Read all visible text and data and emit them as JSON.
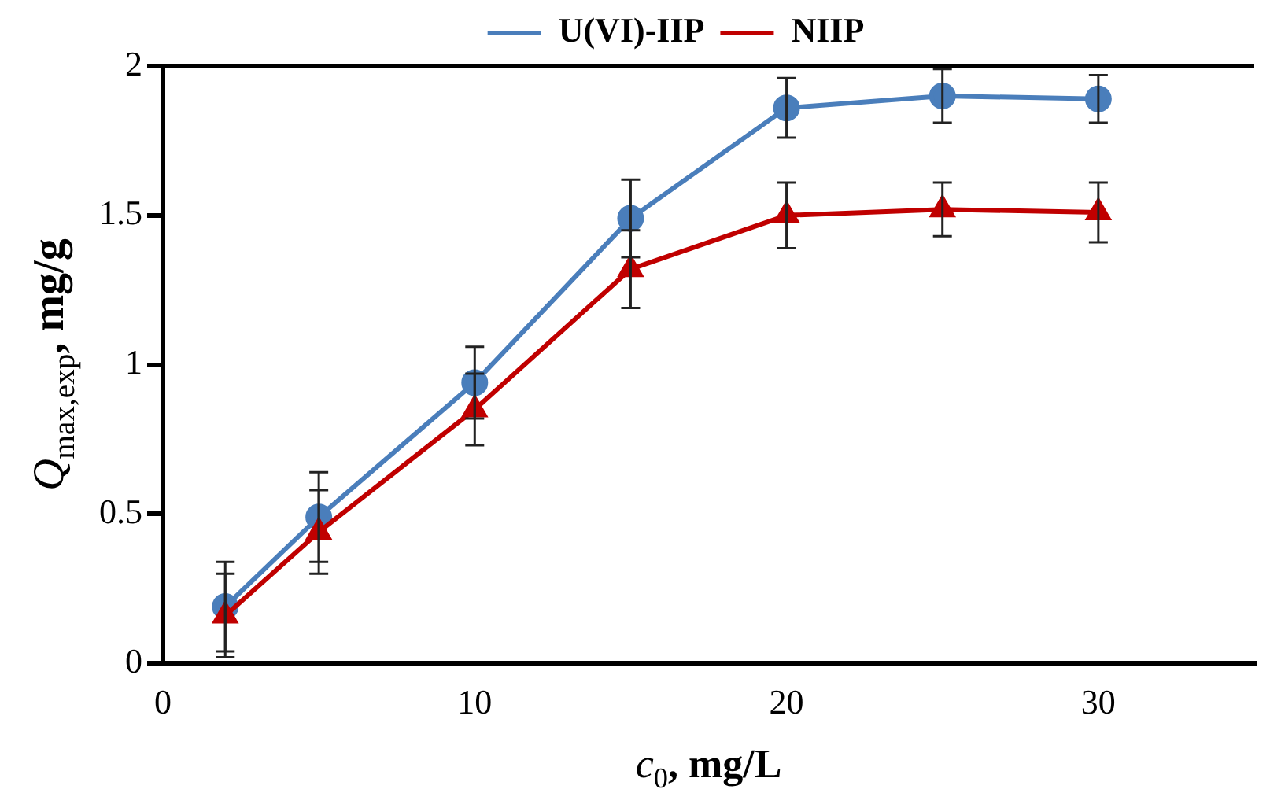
{
  "chart_data": {
    "type": "line",
    "xlabel": "c$_{0}$, mg/L",
    "ylabel": "Q$_{max,exp}$, mg/g",
    "x": [
      2,
      5,
      10,
      15,
      20,
      25,
      30
    ],
    "series": [
      {
        "name": "U(VI)-IIP",
        "color": "#4a7ebb",
        "marker": "circle",
        "values": [
          0.19,
          0.49,
          0.94,
          1.49,
          1.86,
          1.9,
          1.89
        ],
        "errors": [
          0.15,
          0.15,
          0.12,
          0.13,
          0.1,
          0.09,
          0.08
        ]
      },
      {
        "name": "NIIP",
        "color": "#c00000",
        "marker": "triangle",
        "values": [
          0.16,
          0.44,
          0.85,
          1.32,
          1.5,
          1.52,
          1.51
        ],
        "errors": [
          0.14,
          0.14,
          0.12,
          0.13,
          0.11,
          0.09,
          0.1
        ]
      }
    ],
    "xlim": [
      0,
      35
    ],
    "xticks": [
      0,
      10,
      20,
      30
    ],
    "ylim": [
      0,
      2
    ],
    "yticks": [
      0,
      0.5,
      1,
      1.5,
      2
    ],
    "grid": false,
    "legend": "top",
    "line_style": "solid"
  }
}
